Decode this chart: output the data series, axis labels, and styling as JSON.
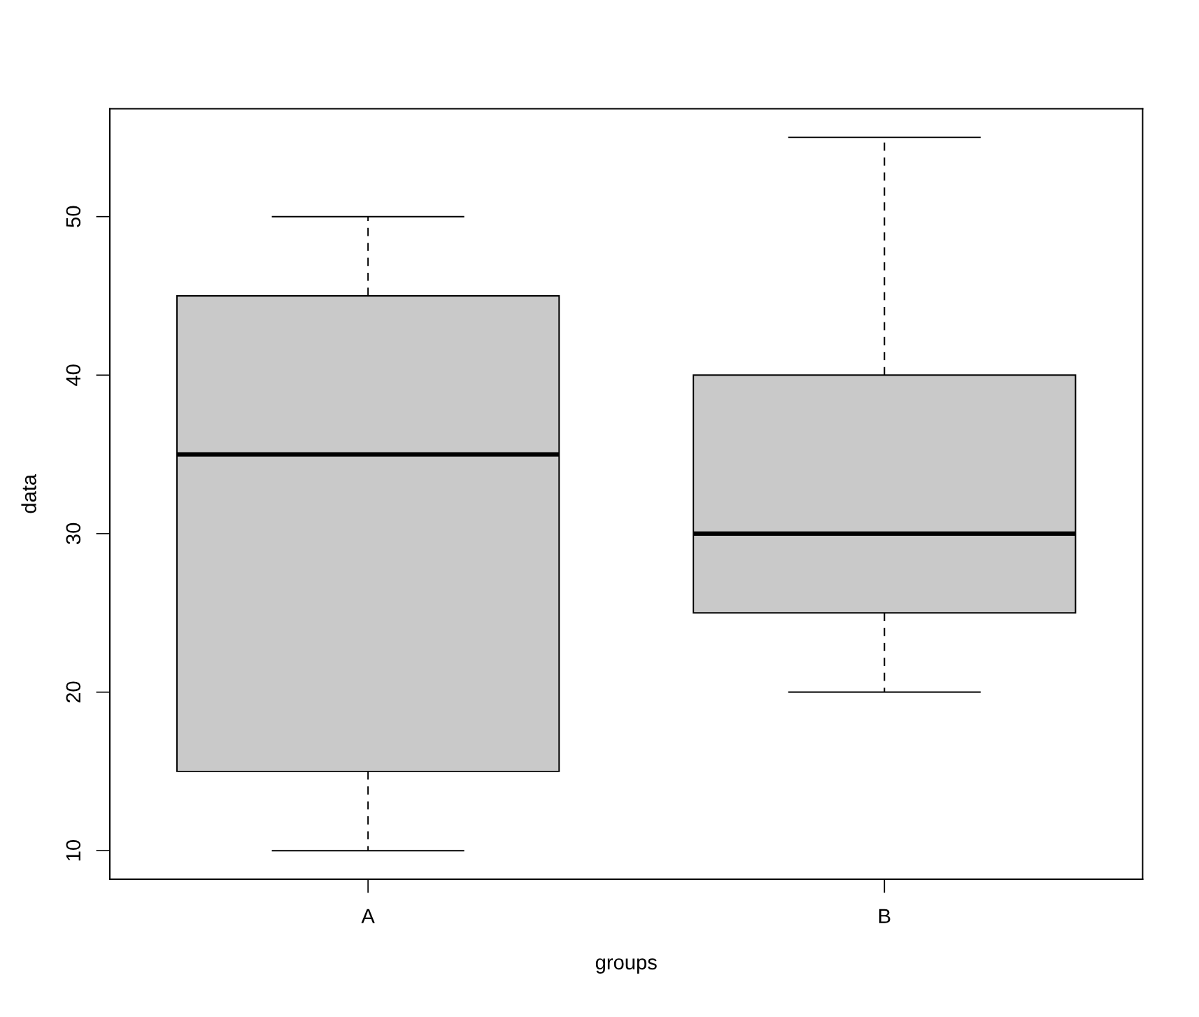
{
  "chart_data": {
    "type": "box",
    "xlabel": "groups",
    "ylabel": "data",
    "categories": [
      "A",
      "B"
    ],
    "boxes": [
      {
        "low": 10,
        "q1": 15,
        "median": 35,
        "q3": 45,
        "high": 50
      },
      {
        "low": 20,
        "q1": 25,
        "median": 30,
        "q3": 40,
        "high": 55
      }
    ],
    "color": "#c9c9c9",
    "line_style": "dashed",
    "ylim": [
      8.2,
      56.8
    ],
    "yticks": [
      10,
      20,
      30,
      40,
      50
    ]
  }
}
